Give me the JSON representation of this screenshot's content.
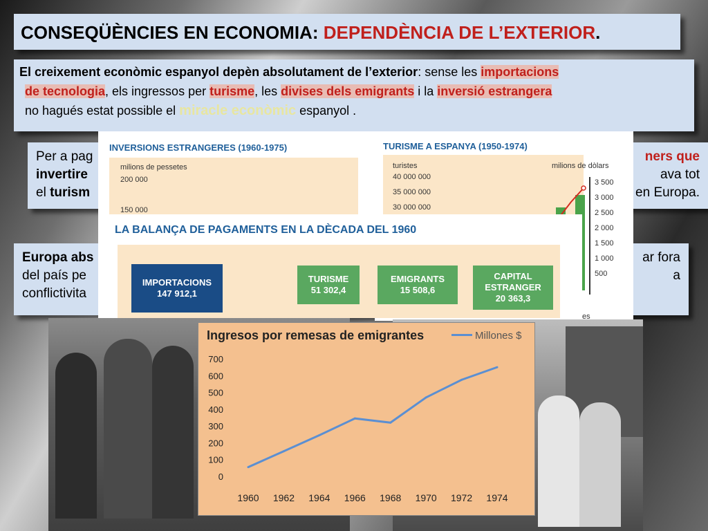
{
  "title": {
    "part1": "CONSEQÜÈNCIES EN ECONOMIA: ",
    "part2": "DEPENDÈNCIA DE L’EXTERIOR",
    "part3": "."
  },
  "intro": {
    "t1": "El creixement econòmic espanyol depèn absolutament de l’exterior",
    "t2": ": sense les  ",
    "h1": "importacions",
    "h2": "de tecnologia",
    "t3": ", els ingressos per ",
    "h3": "turisme",
    "t4": ", les ",
    "h4": "divises dels emigrants",
    "t5": "  i la ",
    "h5": "inversió estrangera",
    "t6": "no hagués estat possible el ",
    "ghost": "miracle econòmic",
    "t7": " espanyol ."
  },
  "para2": {
    "l1a": "Per a pag",
    "l1b": "ners que",
    "l2a": "invertire",
    "l2b": "ava tot",
    "l3a": "el ",
    "l3b": "turism",
    "l3c": "en Europa."
  },
  "para3": {
    "l1a": "Europa abs",
    "l1b": "ar fora",
    "l2a": "del país pe",
    "l2b": "a",
    "l3a": "conflictivita"
  },
  "inv_chart": {
    "title": "INVERSIONS ESTRANGERES (1960-1975)",
    "unit": "milions de pessetes",
    "ticks": [
      "200 000",
      "150 000"
    ]
  },
  "tur_chart": {
    "title": "TURISME A ESPANYA (1950-1974)",
    "left_unit": "turistes",
    "right_unit": "milions de dòlars",
    "left_ticks": [
      "40 000 000",
      "35 000 000",
      "30 000 000"
    ],
    "right_ticks": [
      "3 500",
      "3 000",
      "2 500",
      "2 000",
      "1 500",
      "1 000",
      "500"
    ],
    "foot": "es"
  },
  "balance": {
    "title": "LA BALANÇA DE PAGAMENTS EN LA DÈCADA DEL 1960",
    "items": [
      {
        "label": "IMPORTACIONS",
        "value": "147 912,1"
      },
      {
        "label": "TURISME",
        "value": "51 302,4"
      },
      {
        "label": "EMIGRANTS",
        "value": "15 508,6"
      },
      {
        "label": "CAPITAL ESTRANGER",
        "value": "20 363,3"
      }
    ]
  },
  "chart_data": {
    "type": "line",
    "title": "Ingresos por remesas de emigrantes",
    "x": [
      1960,
      1962,
      1964,
      1966,
      1968,
      1970,
      1972,
      1974
    ],
    "series": [
      {
        "name": "Millones $",
        "values": [
          55,
          150,
          245,
          345,
          320,
          470,
          575,
          650
        ]
      }
    ],
    "x_ticks": [
      "1960",
      "1962",
      "1964",
      "1966",
      "1968",
      "1970",
      "1972",
      "1974"
    ],
    "y_ticks": [
      "700",
      "600",
      "500",
      "400",
      "300",
      "200",
      "100",
      "0"
    ],
    "ylim": [
      0,
      700
    ],
    "legend": "top-right",
    "colors": {
      "line": "#5b8fd2",
      "background": "#f4c08f"
    }
  }
}
